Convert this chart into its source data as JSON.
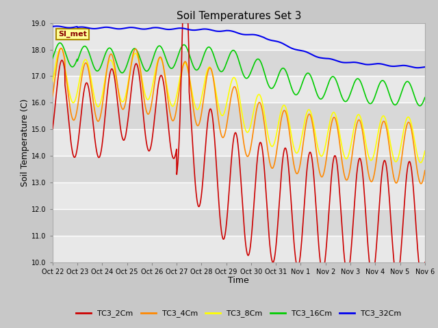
{
  "title": "Soil Temperatures Set 3",
  "xlabel": "Time",
  "ylabel": "Soil Temperature (C)",
  "ylim": [
    10.0,
    19.0
  ],
  "xtick_labels": [
    "Oct 22",
    "Oct 23",
    "Oct 24",
    "Oct 25",
    "Oct 26",
    "Oct 27",
    "Oct 28",
    "Oct 29",
    "Oct 30",
    "Oct 31",
    "Nov 1",
    "Nov 2",
    "Nov 3",
    "Nov 4",
    "Nov 5",
    "Nov 6"
  ],
  "ytick_labels": [
    "10.0",
    "11.0",
    "12.0",
    "13.0",
    "14.0",
    "15.0",
    "16.0",
    "17.0",
    "18.0",
    "19.0"
  ],
  "legend_entries": [
    "TC3_2Cm",
    "TC3_4Cm",
    "TC3_8Cm",
    "TC3_16Cm",
    "TC3_32Cm"
  ],
  "colors": {
    "TC3_2Cm": "#cc0000",
    "TC3_4Cm": "#ff8800",
    "TC3_8Cm": "#ffff00",
    "TC3_16Cm": "#00cc00",
    "TC3_32Cm": "#0000ee"
  },
  "annotation_text": "SI_met",
  "annotation_color": "#880000",
  "annotation_bg": "#ffff99",
  "annotation_border": "#aa8800",
  "bg_color": "#ffffff",
  "plot_bg": "#f0f0f0",
  "band_light": "#e8e8e8",
  "band_dark": "#d8d8d8"
}
